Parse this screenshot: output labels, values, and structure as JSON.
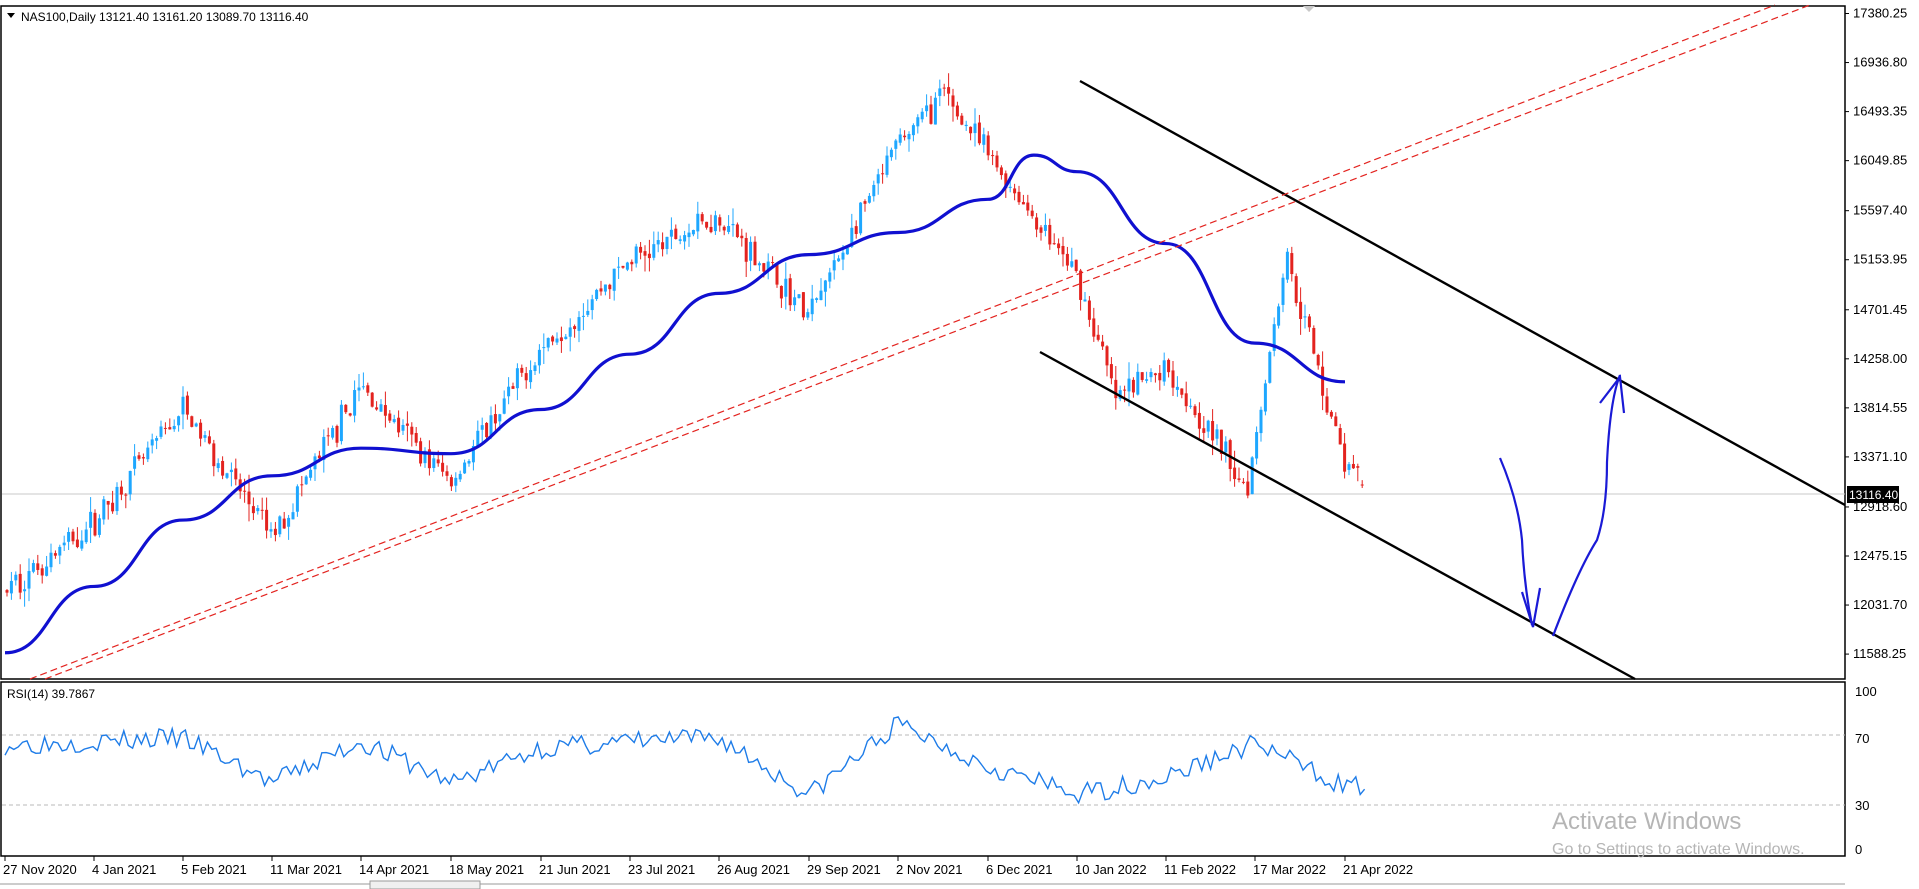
{
  "chart_data": [
    {
      "type": "candlestick",
      "symbol_header": "NAS100,Daily  13121.40 13161.20 13089.70 13116.40",
      "symbol": "NAS100",
      "timeframe": "Daily",
      "last_bar": {
        "open": 13121.4,
        "high": 13161.2,
        "low": 13089.7,
        "close": 13116.4
      },
      "current_price_label": "13116.40",
      "ylim": [
        11372.0,
        17430.0
      ],
      "y_ticks": [
        "17380.25",
        "16936.80",
        "16493.35",
        "16049.85",
        "15597.40",
        "15153.95",
        "14701.45",
        "14258.00",
        "13814.55",
        "13371.10",
        "12918.60",
        "12475.15",
        "12031.70",
        "11588.25"
      ],
      "x_ticks": [
        "27 Nov 2020",
        "4 Jan 2021",
        "5 Feb 2021",
        "11 Mar 2021",
        "14 Apr 2021",
        "18 May 2021",
        "21 Jun 2021",
        "23 Jul 2021",
        "26 Aug 2021",
        "29 Sep 2021",
        "2 Nov 2021",
        "6 Dec 2021",
        "10 Jan 2022",
        "11 Feb 2022",
        "17 Mar 2022",
        "21 Apr 2022"
      ],
      "bullish_color": "#1ea7ff",
      "bearish_color": "#e3231f",
      "key_closes": [
        {
          "date": "27 Nov 2020",
          "close": 12150
        },
        {
          "date": "4 Jan 2021",
          "close": 12780
        },
        {
          "date": "5 Feb 2021",
          "close": 13800
        },
        {
          "date": "11 Mar 2021",
          "close": 12650
        },
        {
          "date": "14 Apr 2021",
          "close": 14000
        },
        {
          "date": "18 May 2021",
          "close": 13150
        },
        {
          "date": "21 Jun 2021",
          "close": 14350
        },
        {
          "date": "23 Jul 2021",
          "close": 15150
        },
        {
          "date": "26 Aug 2021",
          "close": 15550
        },
        {
          "date": "29 Sep 2021",
          "close": 14650
        },
        {
          "date": "2 Nov 2021",
          "close": 16200
        },
        {
          "date": "19 Nov 2021",
          "close": 16650
        },
        {
          "date": "6 Dec 2021",
          "close": 16100
        },
        {
          "date": "10 Jan 2022",
          "close": 15000
        },
        {
          "date": "24 Jan 2022",
          "close": 13900
        },
        {
          "date": "11 Feb 2022",
          "close": 14200
        },
        {
          "date": "14 Mar 2022",
          "close": 13100
        },
        {
          "date": "29 Mar 2022",
          "close": 15200
        },
        {
          "date": "21 Apr 2022",
          "close": 13300
        },
        {
          "date": "29 Apr 2022",
          "close": 13116
        }
      ],
      "moving_average": {
        "color": "#1010d0",
        "points": [
          {
            "date": "27 Nov 2020",
            "value": 11600
          },
          {
            "date": "4 Jan 2021",
            "value": 12200
          },
          {
            "date": "5 Feb 2021",
            "value": 12800
          },
          {
            "date": "11 Mar 2021",
            "value": 13200
          },
          {
            "date": "14 Apr 2021",
            "value": 13450
          },
          {
            "date": "18 May 2021",
            "value": 13400
          },
          {
            "date": "21 Jun 2021",
            "value": 13800
          },
          {
            "date": "23 Jul 2021",
            "value": 14300
          },
          {
            "date": "26 Aug 2021",
            "value": 14850
          },
          {
            "date": "29 Sep 2021",
            "value": 15200
          },
          {
            "date": "2 Nov 2021",
            "value": 15400
          },
          {
            "date": "6 Dec 2021",
            "value": 15700
          },
          {
            "date": "24 Dec 2021",
            "value": 16100
          },
          {
            "date": "10 Jan 2022",
            "value": 15950
          },
          {
            "date": "11 Feb 2022",
            "value": 15300
          },
          {
            "date": "17 Mar 2022",
            "value": 14400
          },
          {
            "date": "21 Apr 2022",
            "value": 14050
          }
        ]
      },
      "drawings": {
        "channel_color": "#000000",
        "trendline_color": "#e3231f",
        "arrow_color": "#1a1ad6"
      },
      "grid": false
    },
    {
      "type": "line",
      "title": "RSI(14) 39.7867",
      "ylim": [
        0,
        100
      ],
      "y_ticks": [
        "100",
        "70",
        "30",
        "0"
      ],
      "levels": [
        70,
        30
      ],
      "color": "#1e7ce8",
      "points": [
        {
          "date": "27 Nov 2020",
          "value": 64
        },
        {
          "date": "4 Jan 2021",
          "value": 66
        },
        {
          "date": "5 Feb 2021",
          "value": 68
        },
        {
          "date": "11 Mar 2021",
          "value": 42
        },
        {
          "date": "14 Apr 2021",
          "value": 66
        },
        {
          "date": "18 May 2021",
          "value": 42
        },
        {
          "date": "21 Jun 2021",
          "value": 62
        },
        {
          "date": "23 Jul 2021",
          "value": 66
        },
        {
          "date": "26 Aug 2021",
          "value": 68
        },
        {
          "date": "29 Sep 2021",
          "value": 35
        },
        {
          "date": "2 Nov 2021",
          "value": 76
        },
        {
          "date": "6 Dec 2021",
          "value": 52
        },
        {
          "date": "10 Jan 2022",
          "value": 35
        },
        {
          "date": "11 Feb 2022",
          "value": 45
        },
        {
          "date": "17 Mar 2022",
          "value": 65
        },
        {
          "date": "21 Apr 2022",
          "value": 40
        }
      ]
    }
  ],
  "watermark": {
    "line1": "Activate Windows",
    "line2": "Go to Settings to activate Windows."
  }
}
